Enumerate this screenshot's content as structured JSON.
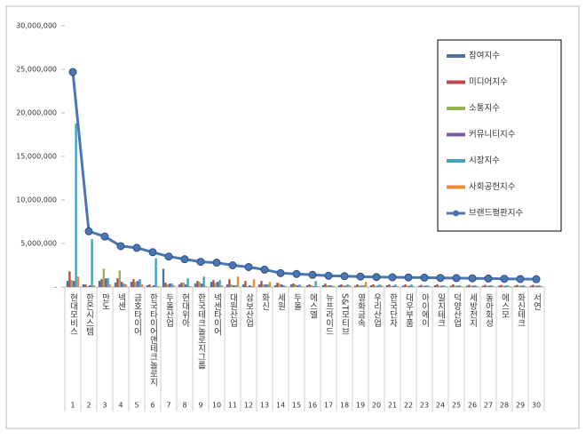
{
  "chart_data": {
    "type": "bar_line",
    "categories": [
      "현대모비스",
      "한온시스템",
      "만도",
      "넥센",
      "금호타이어",
      "한국타이어앤테크놀로지",
      "두올산업",
      "현대위아",
      "한국테크놀로지그룹",
      "넥센타이어",
      "대원산업",
      "삼보산업",
      "화신",
      "세원",
      "두올",
      "에스엘",
      "뉴프라이드",
      "S&T모티브",
      "영화금속",
      "우리산업",
      "한국단자",
      "대우부품",
      "아이에이",
      "일지테크",
      "덕양산업",
      "세방전지",
      "동아화성",
      "에스모",
      "화신테크",
      "서연"
    ],
    "category_numbers": [
      1,
      2,
      3,
      4,
      5,
      6,
      7,
      8,
      9,
      10,
      11,
      12,
      13,
      14,
      15,
      16,
      17,
      18,
      19,
      20,
      21,
      22,
      23,
      24,
      25,
      26,
      27,
      28,
      29,
      30
    ],
    "ylim": [
      0,
      30000000
    ],
    "yticks": [
      {
        "value": 0,
        "label": "-"
      },
      {
        "value": 5000000,
        "label": "5,000,000"
      },
      {
        "value": 10000000,
        "label": "10,000,000"
      },
      {
        "value": 15000000,
        "label": "15,000,000"
      },
      {
        "value": 20000000,
        "label": "20,000,000"
      },
      {
        "value": 25000000,
        "label": "25,000,000"
      },
      {
        "value": 30000000,
        "label": "30,000,000"
      }
    ],
    "legend": "right",
    "series": [
      {
        "name": "참여지수",
        "color": "#4f6fa3",
        "kind": "bar",
        "values": [
          700000,
          300000,
          700000,
          500000,
          600000,
          200000,
          2100000,
          300000,
          400000,
          600000,
          300000,
          300000,
          300000,
          200000,
          300000,
          200000,
          200000,
          200000,
          150000,
          200000,
          200000,
          150000,
          150000,
          200000,
          150000,
          150000,
          150000,
          150000,
          150000,
          150000
        ]
      },
      {
        "name": "미디어지수",
        "color": "#b94a48",
        "kind": "bar",
        "values": [
          1800000,
          300000,
          900000,
          1000000,
          900000,
          300000,
          500000,
          500000,
          700000,
          800000,
          900000,
          700000,
          700000,
          500000,
          400000,
          300000,
          400000,
          300000,
          300000,
          300000,
          300000,
          300000,
          250000,
          300000,
          300000,
          250000,
          250000,
          250000,
          250000,
          250000
        ]
      },
      {
        "name": "소통지수",
        "color": "#93b553",
        "kind": "bar",
        "values": [
          800000,
          100000,
          2100000,
          1900000,
          600000,
          100000,
          300000,
          500000,
          600000,
          500000,
          300000,
          100000,
          300000,
          400000,
          300000,
          200000,
          200000,
          200000,
          200000,
          150000,
          150000,
          150000,
          150000,
          150000,
          150000,
          150000,
          150000,
          150000,
          150000,
          150000
        ]
      },
      {
        "name": "커뮤니티지수",
        "color": "#7a5e9e",
        "kind": "bar",
        "values": [
          700000,
          200000,
          1000000,
          600000,
          700000,
          200000,
          400000,
          300000,
          400000,
          600000,
          200000,
          200000,
          300000,
          300000,
          200000,
          100000,
          200000,
          150000,
          150000,
          150000,
          150000,
          150000,
          150000,
          150000,
          150000,
          150000,
          150000,
          150000,
          150000,
          150000
        ]
      },
      {
        "name": "시장지수",
        "color": "#42a3be",
        "kind": "bar",
        "values": [
          18800000,
          5500000,
          1000000,
          400000,
          900000,
          3300000,
          400000,
          1000000,
          1200000,
          800000,
          200000,
          100000,
          300000,
          200000,
          300000,
          700000,
          200000,
          300000,
          200000,
          300000,
          300000,
          300000,
          200000,
          200000,
          200000,
          200000,
          200000,
          200000,
          200000,
          200000
        ]
      },
      {
        "name": "사회공헌지수",
        "color": "#e88c3c",
        "kind": "bar",
        "values": [
          1200000,
          200000,
          300000,
          300000,
          300000,
          100000,
          200000,
          100000,
          100000,
          200000,
          1200000,
          900000,
          600000,
          100000,
          100000,
          100000,
          100000,
          200000,
          600000,
          200000,
          100000,
          100000,
          100000,
          100000,
          100000,
          100000,
          100000,
          100000,
          100000,
          100000
        ]
      },
      {
        "name": "브랜드평판지수",
        "color": "#4a77b4",
        "kind": "line",
        "values": [
          24700000,
          6400000,
          5800000,
          4700000,
          4500000,
          4000000,
          3500000,
          3200000,
          2900000,
          2800000,
          2500000,
          2300000,
          2000000,
          1600000,
          1500000,
          1400000,
          1300000,
          1250000,
          1200000,
          1150000,
          1120000,
          1100000,
          1080000,
          1050000,
          1030000,
          1000000,
          980000,
          950000,
          920000,
          900000
        ]
      }
    ]
  }
}
